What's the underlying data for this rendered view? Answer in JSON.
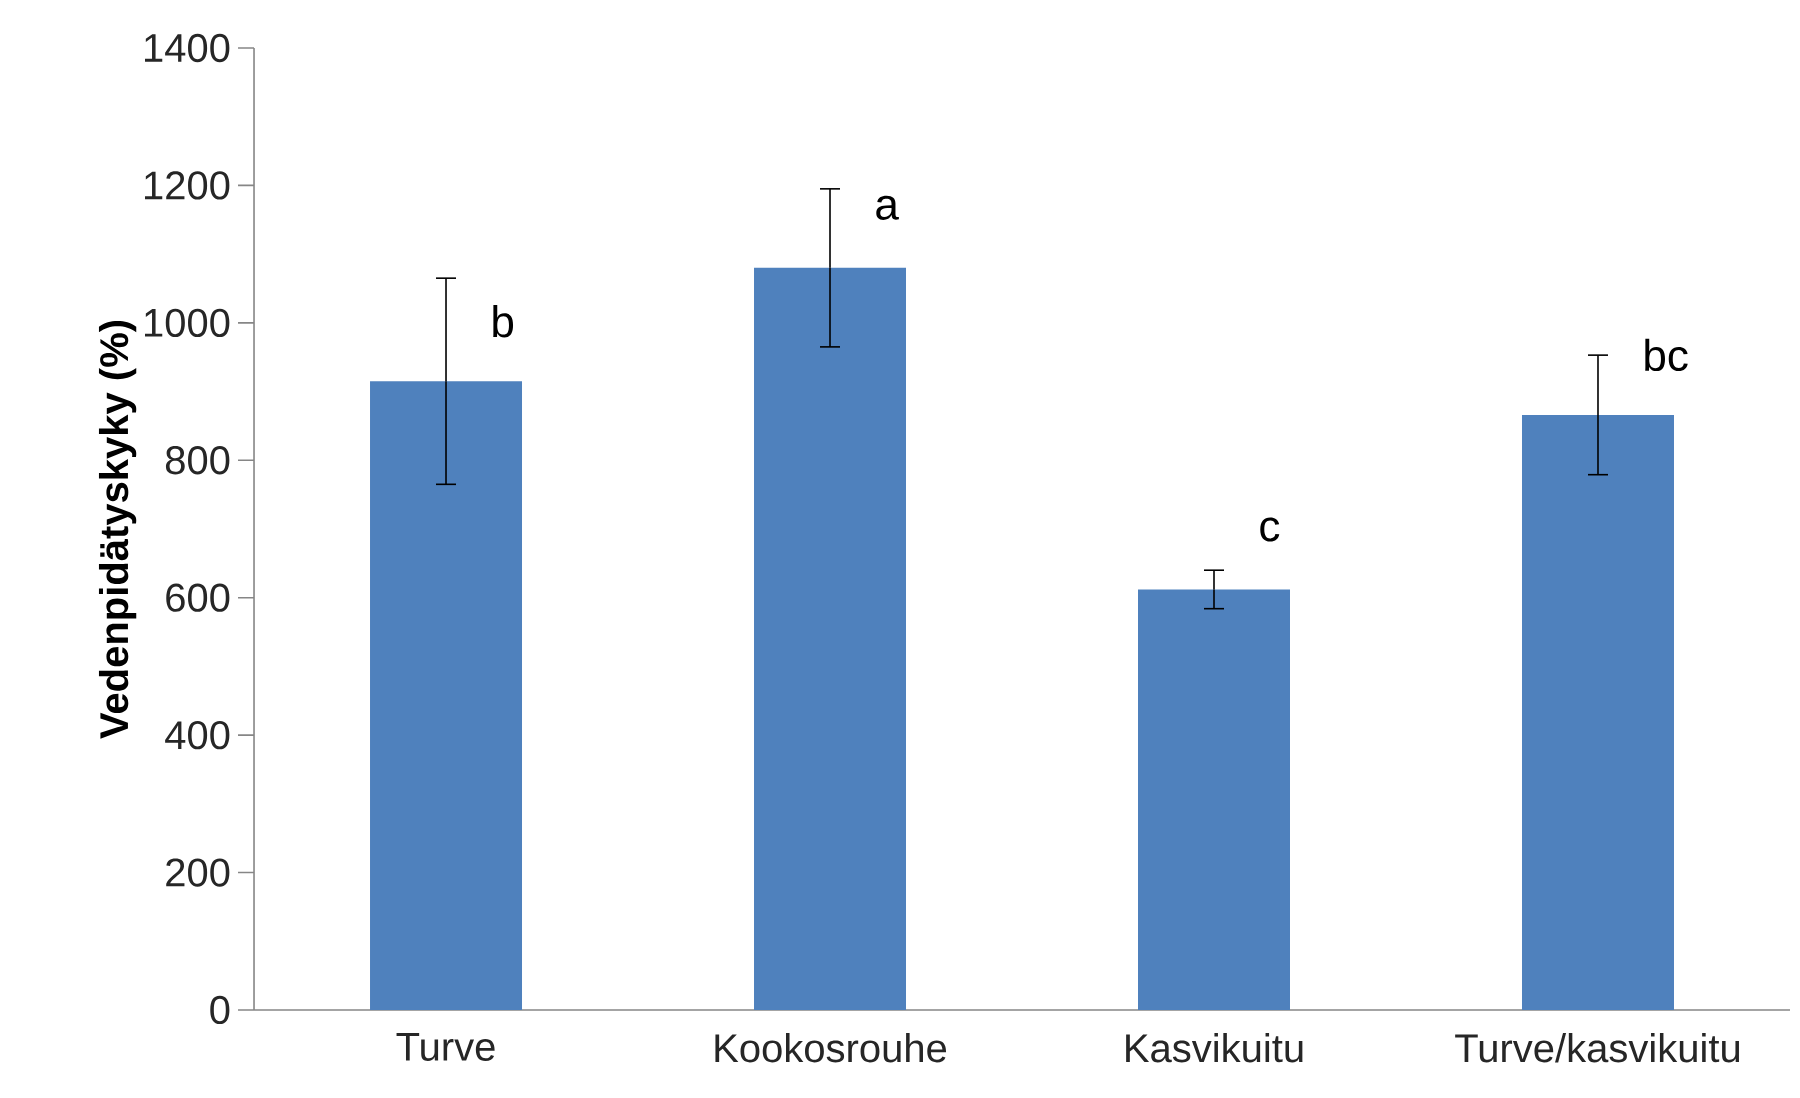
{
  "chart_data": {
    "type": "bar",
    "ylabel": "Vedenpidätyskyky (%)",
    "categories": [
      "Turve",
      "Kookosrouhe",
      "Kasvikuitu",
      "Turve/kasvikuitu"
    ],
    "values": [
      915,
      1080,
      612,
      866
    ],
    "errors": [
      150,
      115,
      28,
      87
    ],
    "color": "#4f81bd",
    "ylim": [
      0,
      1400
    ],
    "yticks": [
      0,
      200,
      400,
      600,
      800,
      1000,
      1200,
      1400
    ],
    "annotations": [
      "b",
      "a",
      "c",
      "bc"
    ]
  }
}
